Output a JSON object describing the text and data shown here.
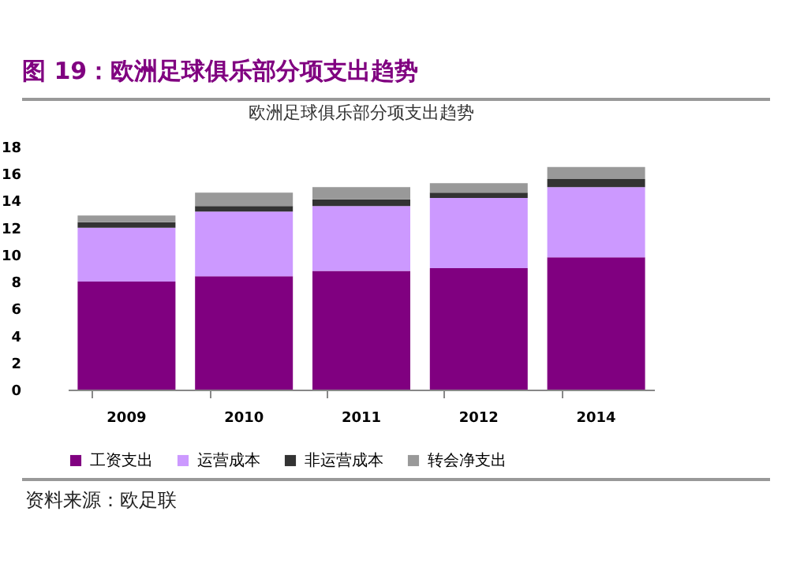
{
  "chart_data": {
    "type": "bar",
    "title": "图 19：欧洲足球俱乐部分项支出趋势",
    "subtitle": "欧洲足球俱乐部分项支出趋势",
    "categories": [
      "2009",
      "2010",
      "2011",
      "2012",
      "2014"
    ],
    "stacked": true,
    "series": [
      {
        "name": "工资支出",
        "color": "#800080",
        "values": [
          8.0,
          8.4,
          8.8,
          9.0,
          9.8
        ]
      },
      {
        "name": "运营成本",
        "color": "#cc99ff",
        "values": [
          4.0,
          4.8,
          4.8,
          5.2,
          5.2
        ]
      },
      {
        "name": "非运营成本",
        "color": "#333333",
        "values": [
          0.4,
          0.4,
          0.5,
          0.4,
          0.6
        ]
      },
      {
        "name": "转会净支出",
        "color": "#999999",
        "values": [
          0.5,
          1.0,
          0.9,
          0.7,
          0.9
        ]
      }
    ],
    "ylim": [
      0,
      18
    ],
    "yticks": [
      0,
      2,
      4,
      6,
      8,
      10,
      12,
      14,
      16,
      18
    ],
    "legend": "bottom",
    "grid": false,
    "annotations": [
      "资料来源：欧足联"
    ]
  }
}
